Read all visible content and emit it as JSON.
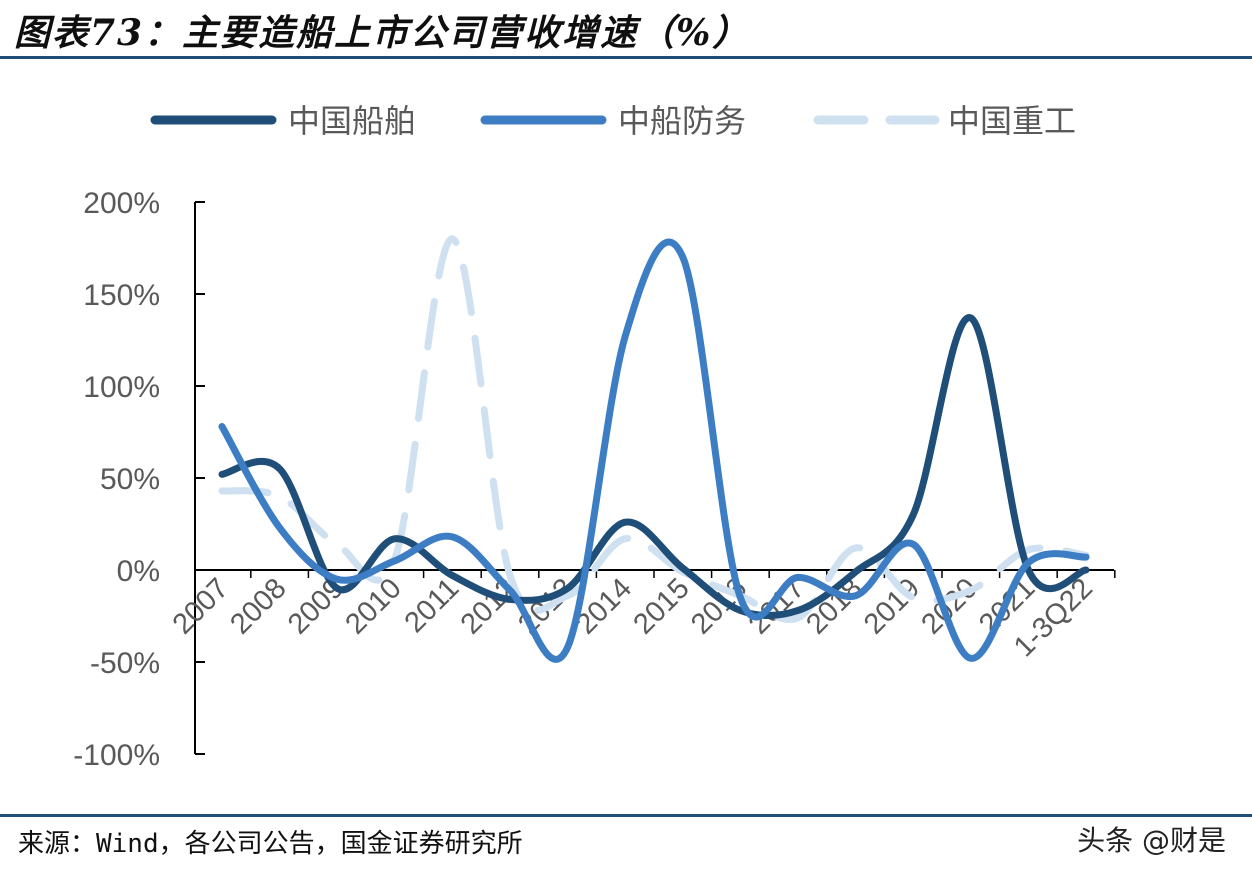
{
  "title": "图表73：主要造船上市公司营收增速（%）",
  "source": "来源：Wind，各公司公告，国金证券研究所",
  "watermark": "头条 @财是",
  "chart_data": {
    "type": "line",
    "title": "图表73：主要造船上市公司营收增速（%）",
    "categories": [
      "2007",
      "2008",
      "2009",
      "2010",
      "2011",
      "2012",
      "2013",
      "2014",
      "2015",
      "2016",
      "2017",
      "2018",
      "2019",
      "2020",
      "2021",
      "1-3Q22"
    ],
    "y_ticks": [
      "200%",
      "150%",
      "100%",
      "50%",
      "0%",
      "-50%",
      "-100%"
    ],
    "ylim": [
      -100,
      200
    ],
    "y_unit": "%",
    "grid": false,
    "legend_position": "top",
    "series": [
      {
        "name": "中国船舶",
        "color": "#1f4e79",
        "dash": "solid",
        "values": [
          52,
          55,
          -10,
          17,
          -3,
          -16,
          -10,
          26,
          1,
          -22,
          -22,
          -1,
          30,
          137,
          0,
          0
        ]
      },
      {
        "name": "中船防务",
        "color": "#3c7dc4",
        "dash": "solid",
        "values": [
          78,
          23,
          -5,
          5,
          18,
          -11,
          -42,
          127,
          170,
          -15,
          -4,
          -14,
          14,
          -48,
          4,
          7
        ]
      },
      {
        "name": "中国重工",
        "color": "#cfe0f1",
        "dash": "dashed",
        "values": [
          43,
          40,
          14,
          6,
          180,
          -3,
          -14,
          17,
          -1,
          -14,
          -26,
          12,
          -15,
          -11,
          11,
          8
        ]
      }
    ]
  }
}
